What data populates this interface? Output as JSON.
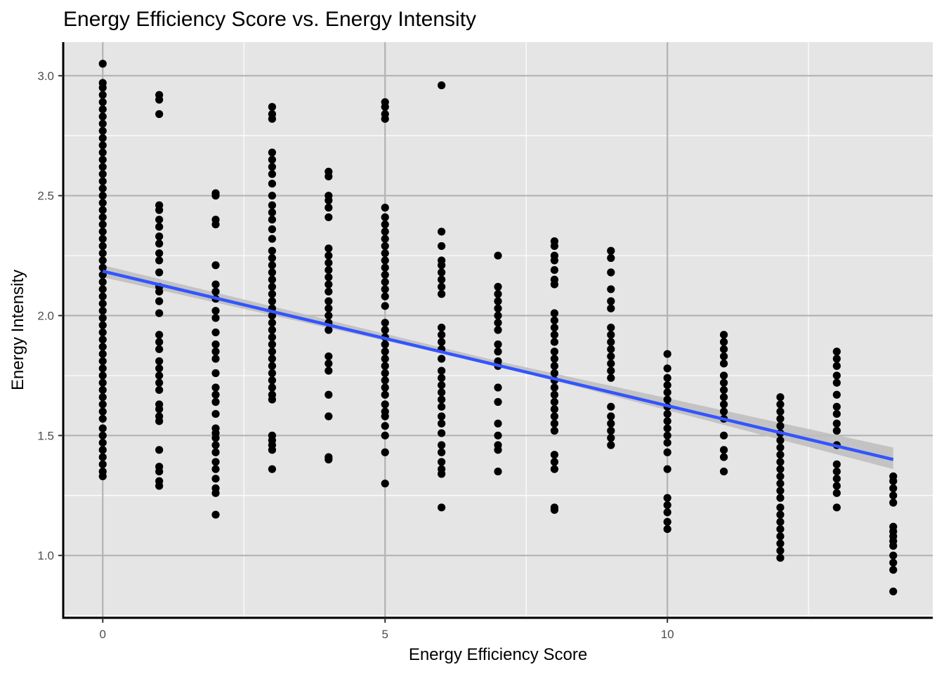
{
  "chart_data": {
    "type": "scatter",
    "title": "Energy Efficiency Score vs. Energy Intensity",
    "xlabel": "Energy Efficiency Score",
    "ylabel": "Energy Intensity",
    "xlim": [
      -0.7,
      14.7
    ],
    "ylim": [
      0.74,
      3.14
    ],
    "x_ticks": [
      0,
      5,
      10
    ],
    "x_tick_labels": [
      "0",
      "5",
      "10"
    ],
    "y_ticks": [
      1.0,
      1.5,
      2.0,
      2.5,
      3.0
    ],
    "y_tick_labels": [
      "1.0",
      "1.5",
      "2.0",
      "2.5",
      "3.0"
    ],
    "grid": true,
    "colors": {
      "panel": "#e5e5e5",
      "grid_major": "#b3b3b3",
      "grid_minor": "#ffffff",
      "points": "#000000",
      "trend": "#3355ff",
      "band": "#bdbdbd"
    },
    "trend_line": {
      "x": [
        0,
        14
      ],
      "y": [
        2.185,
        1.4
      ]
    },
    "confidence_band": {
      "x": [
        0,
        7,
        14
      ],
      "lower": [
        2.16,
        1.79,
        1.36
      ],
      "upper": [
        2.21,
        1.81,
        1.45
      ]
    },
    "points": [
      [
        0,
        3.05
      ],
      [
        0,
        2.97
      ],
      [
        0,
        2.95
      ],
      [
        0,
        2.92
      ],
      [
        0,
        2.89
      ],
      [
        0,
        2.86
      ],
      [
        0,
        2.83
      ],
      [
        0,
        2.8
      ],
      [
        0,
        2.77
      ],
      [
        0,
        2.74
      ],
      [
        0,
        2.71
      ],
      [
        0,
        2.68
      ],
      [
        0,
        2.65
      ],
      [
        0,
        2.62
      ],
      [
        0,
        2.59
      ],
      [
        0,
        2.56
      ],
      [
        0,
        2.53
      ],
      [
        0,
        2.5
      ],
      [
        0,
        2.47
      ],
      [
        0,
        2.44
      ],
      [
        0,
        2.41
      ],
      [
        0,
        2.38
      ],
      [
        0,
        2.35
      ],
      [
        0,
        2.32
      ],
      [
        0,
        2.29
      ],
      [
        0,
        2.26
      ],
      [
        0,
        2.23
      ],
      [
        0,
        2.2
      ],
      [
        0,
        2.17
      ],
      [
        0,
        2.14
      ],
      [
        0,
        2.11
      ],
      [
        0,
        2.08
      ],
      [
        0,
        2.05
      ],
      [
        0,
        2.02
      ],
      [
        0,
        1.99
      ],
      [
        0,
        1.96
      ],
      [
        0,
        1.93
      ],
      [
        0,
        1.9
      ],
      [
        0,
        1.87
      ],
      [
        0,
        1.84
      ],
      [
        0,
        1.81
      ],
      [
        0,
        1.78
      ],
      [
        0,
        1.75
      ],
      [
        0,
        1.72
      ],
      [
        0,
        1.69
      ],
      [
        0,
        1.66
      ],
      [
        0,
        1.63
      ],
      [
        0,
        1.6
      ],
      [
        0,
        1.57
      ],
      [
        0,
        1.53
      ],
      [
        0,
        1.5
      ],
      [
        0,
        1.47
      ],
      [
        0,
        1.44
      ],
      [
        0,
        1.41
      ],
      [
        0,
        1.38
      ],
      [
        0,
        1.35
      ],
      [
        0,
        1.33
      ],
      [
        1,
        2.92
      ],
      [
        1,
        2.9
      ],
      [
        1,
        2.84
      ],
      [
        1,
        2.46
      ],
      [
        1,
        2.44
      ],
      [
        1,
        2.4
      ],
      [
        1,
        2.37
      ],
      [
        1,
        2.33
      ],
      [
        1,
        2.3
      ],
      [
        1,
        2.26
      ],
      [
        1,
        2.23
      ],
      [
        1,
        2.18
      ],
      [
        1,
        2.12
      ],
      [
        1,
        2.1
      ],
      [
        1,
        2.06
      ],
      [
        1,
        2.01
      ],
      [
        1,
        1.92
      ],
      [
        1,
        1.89
      ],
      [
        1,
        1.86
      ],
      [
        1,
        1.81
      ],
      [
        1,
        1.78
      ],
      [
        1,
        1.75
      ],
      [
        1,
        1.72
      ],
      [
        1,
        1.69
      ],
      [
        1,
        1.63
      ],
      [
        1,
        1.61
      ],
      [
        1,
        1.58
      ],
      [
        1,
        1.56
      ],
      [
        1,
        1.44
      ],
      [
        1,
        1.37
      ],
      [
        1,
        1.35
      ],
      [
        1,
        1.31
      ],
      [
        1,
        1.29
      ],
      [
        2,
        2.51
      ],
      [
        2,
        2.5
      ],
      [
        2,
        2.4
      ],
      [
        2,
        2.38
      ],
      [
        2,
        2.21
      ],
      [
        2,
        2.13
      ],
      [
        2,
        2.1
      ],
      [
        2,
        2.07
      ],
      [
        2,
        2.02
      ],
      [
        2,
        1.99
      ],
      [
        2,
        1.93
      ],
      [
        2,
        1.88
      ],
      [
        2,
        1.85
      ],
      [
        2,
        1.82
      ],
      [
        2,
        1.76
      ],
      [
        2,
        1.7
      ],
      [
        2,
        1.67
      ],
      [
        2,
        1.64
      ],
      [
        2,
        1.59
      ],
      [
        2,
        1.53
      ],
      [
        2,
        1.51
      ],
      [
        2,
        1.49
      ],
      [
        2,
        1.46
      ],
      [
        2,
        1.43
      ],
      [
        2,
        1.39
      ],
      [
        2,
        1.36
      ],
      [
        2,
        1.32
      ],
      [
        2,
        1.28
      ],
      [
        2,
        1.26
      ],
      [
        2,
        1.17
      ],
      [
        3,
        2.87
      ],
      [
        3,
        2.84
      ],
      [
        3,
        2.82
      ],
      [
        3,
        2.68
      ],
      [
        3,
        2.65
      ],
      [
        3,
        2.62
      ],
      [
        3,
        2.59
      ],
      [
        3,
        2.55
      ],
      [
        3,
        2.5
      ],
      [
        3,
        2.46
      ],
      [
        3,
        2.43
      ],
      [
        3,
        2.4
      ],
      [
        3,
        2.36
      ],
      [
        3,
        2.32
      ],
      [
        3,
        2.27
      ],
      [
        3,
        2.24
      ],
      [
        3,
        2.21
      ],
      [
        3,
        2.18
      ],
      [
        3,
        2.15
      ],
      [
        3,
        2.12
      ],
      [
        3,
        2.09
      ],
      [
        3,
        2.06
      ],
      [
        3,
        2.03
      ],
      [
        3,
        2.0
      ],
      [
        3,
        1.97
      ],
      [
        3,
        1.94
      ],
      [
        3,
        1.91
      ],
      [
        3,
        1.88
      ],
      [
        3,
        1.85
      ],
      [
        3,
        1.82
      ],
      [
        3,
        1.79
      ],
      [
        3,
        1.76
      ],
      [
        3,
        1.73
      ],
      [
        3,
        1.7
      ],
      [
        3,
        1.67
      ],
      [
        3,
        1.65
      ],
      [
        3,
        1.5
      ],
      [
        3,
        1.48
      ],
      [
        3,
        1.46
      ],
      [
        3,
        1.44
      ],
      [
        3,
        1.36
      ],
      [
        4,
        2.6
      ],
      [
        4,
        2.58
      ],
      [
        4,
        2.5
      ],
      [
        4,
        2.48
      ],
      [
        4,
        2.45
      ],
      [
        4,
        2.41
      ],
      [
        4,
        2.28
      ],
      [
        4,
        2.25
      ],
      [
        4,
        2.22
      ],
      [
        4,
        2.19
      ],
      [
        4,
        2.16
      ],
      [
        4,
        2.13
      ],
      [
        4,
        2.1
      ],
      [
        4,
        2.06
      ],
      [
        4,
        2.03
      ],
      [
        4,
        2.0
      ],
      [
        4,
        1.97
      ],
      [
        4,
        1.94
      ],
      [
        4,
        1.83
      ],
      [
        4,
        1.8
      ],
      [
        4,
        1.77
      ],
      [
        4,
        1.67
      ],
      [
        4,
        1.58
      ],
      [
        4,
        1.41
      ],
      [
        4,
        1.4
      ],
      [
        5,
        2.89
      ],
      [
        5,
        2.87
      ],
      [
        5,
        2.84
      ],
      [
        5,
        2.82
      ],
      [
        5,
        2.45
      ],
      [
        5,
        2.41
      ],
      [
        5,
        2.38
      ],
      [
        5,
        2.35
      ],
      [
        5,
        2.32
      ],
      [
        5,
        2.29
      ],
      [
        5,
        2.26
      ],
      [
        5,
        2.23
      ],
      [
        5,
        2.2
      ],
      [
        5,
        2.17
      ],
      [
        5,
        2.14
      ],
      [
        5,
        2.11
      ],
      [
        5,
        2.08
      ],
      [
        5,
        2.04
      ],
      [
        5,
        1.97
      ],
      [
        5,
        1.94
      ],
      [
        5,
        1.91
      ],
      [
        5,
        1.88
      ],
      [
        5,
        1.85
      ],
      [
        5,
        1.82
      ],
      [
        5,
        1.79
      ],
      [
        5,
        1.76
      ],
      [
        5,
        1.73
      ],
      [
        5,
        1.7
      ],
      [
        5,
        1.67
      ],
      [
        5,
        1.63
      ],
      [
        5,
        1.6
      ],
      [
        5,
        1.58
      ],
      [
        5,
        1.54
      ],
      [
        5,
        1.5
      ],
      [
        5,
        1.43
      ],
      [
        5,
        1.3
      ],
      [
        6,
        2.96
      ],
      [
        6,
        2.35
      ],
      [
        6,
        2.29
      ],
      [
        6,
        2.23
      ],
      [
        6,
        2.21
      ],
      [
        6,
        2.18
      ],
      [
        6,
        2.15
      ],
      [
        6,
        2.12
      ],
      [
        6,
        2.09
      ],
      [
        6,
        1.95
      ],
      [
        6,
        1.92
      ],
      [
        6,
        1.89
      ],
      [
        6,
        1.86
      ],
      [
        6,
        1.82
      ],
      [
        6,
        1.77
      ],
      [
        6,
        1.74
      ],
      [
        6,
        1.71
      ],
      [
        6,
        1.68
      ],
      [
        6,
        1.65
      ],
      [
        6,
        1.62
      ],
      [
        6,
        1.58
      ],
      [
        6,
        1.55
      ],
      [
        6,
        1.51
      ],
      [
        6,
        1.46
      ],
      [
        6,
        1.43
      ],
      [
        6,
        1.39
      ],
      [
        6,
        1.36
      ],
      [
        6,
        1.34
      ],
      [
        6,
        1.2
      ],
      [
        7,
        2.25
      ],
      [
        7,
        2.12
      ],
      [
        7,
        2.09
      ],
      [
        7,
        2.06
      ],
      [
        7,
        2.03
      ],
      [
        7,
        2.0
      ],
      [
        7,
        1.97
      ],
      [
        7,
        1.94
      ],
      [
        7,
        1.88
      ],
      [
        7,
        1.85
      ],
      [
        7,
        1.81
      ],
      [
        7,
        1.79
      ],
      [
        7,
        1.7
      ],
      [
        7,
        1.64
      ],
      [
        7,
        1.55
      ],
      [
        7,
        1.5
      ],
      [
        7,
        1.46
      ],
      [
        7,
        1.44
      ],
      [
        7,
        1.35
      ],
      [
        8,
        2.31
      ],
      [
        8,
        2.29
      ],
      [
        8,
        2.25
      ],
      [
        8,
        2.23
      ],
      [
        8,
        2.19
      ],
      [
        8,
        2.15
      ],
      [
        8,
        2.13
      ],
      [
        8,
        2.01
      ],
      [
        8,
        1.98
      ],
      [
        8,
        1.95
      ],
      [
        8,
        1.92
      ],
      [
        8,
        1.89
      ],
      [
        8,
        1.85
      ],
      [
        8,
        1.82
      ],
      [
        8,
        1.79
      ],
      [
        8,
        1.76
      ],
      [
        8,
        1.73
      ],
      [
        8,
        1.7
      ],
      [
        8,
        1.67
      ],
      [
        8,
        1.64
      ],
      [
        8,
        1.61
      ],
      [
        8,
        1.58
      ],
      [
        8,
        1.55
      ],
      [
        8,
        1.52
      ],
      [
        8,
        1.42
      ],
      [
        8,
        1.39
      ],
      [
        8,
        1.36
      ],
      [
        8,
        1.2
      ],
      [
        8,
        1.19
      ],
      [
        9,
        2.27
      ],
      [
        9,
        2.24
      ],
      [
        9,
        2.18
      ],
      [
        9,
        2.11
      ],
      [
        9,
        2.06
      ],
      [
        9,
        2.03
      ],
      [
        9,
        1.95
      ],
      [
        9,
        1.92
      ],
      [
        9,
        1.89
      ],
      [
        9,
        1.86
      ],
      [
        9,
        1.83
      ],
      [
        9,
        1.8
      ],
      [
        9,
        1.77
      ],
      [
        9,
        1.74
      ],
      [
        9,
        1.62
      ],
      [
        9,
        1.58
      ],
      [
        9,
        1.55
      ],
      [
        9,
        1.52
      ],
      [
        9,
        1.49
      ],
      [
        9,
        1.46
      ],
      [
        10,
        1.84
      ],
      [
        10,
        1.78
      ],
      [
        10,
        1.74
      ],
      [
        10,
        1.71
      ],
      [
        10,
        1.68
      ],
      [
        10,
        1.65
      ],
      [
        10,
        1.62
      ],
      [
        10,
        1.59
      ],
      [
        10,
        1.56
      ],
      [
        10,
        1.53
      ],
      [
        10,
        1.5
      ],
      [
        10,
        1.47
      ],
      [
        10,
        1.43
      ],
      [
        10,
        1.36
      ],
      [
        10,
        1.24
      ],
      [
        10,
        1.21
      ],
      [
        10,
        1.18
      ],
      [
        10,
        1.14
      ],
      [
        10,
        1.11
      ],
      [
        11,
        1.92
      ],
      [
        11,
        1.89
      ],
      [
        11,
        1.86
      ],
      [
        11,
        1.83
      ],
      [
        11,
        1.8
      ],
      [
        11,
        1.75
      ],
      [
        11,
        1.72
      ],
      [
        11,
        1.69
      ],
      [
        11,
        1.66
      ],
      [
        11,
        1.63
      ],
      [
        11,
        1.6
      ],
      [
        11,
        1.57
      ],
      [
        11,
        1.5
      ],
      [
        11,
        1.44
      ],
      [
        11,
        1.41
      ],
      [
        11,
        1.35
      ],
      [
        12,
        1.66
      ],
      [
        12,
        1.63
      ],
      [
        12,
        1.6
      ],
      [
        12,
        1.57
      ],
      [
        12,
        1.54
      ],
      [
        12,
        1.51
      ],
      [
        12,
        1.48
      ],
      [
        12,
        1.45
      ],
      [
        12,
        1.42
      ],
      [
        12,
        1.39
      ],
      [
        12,
        1.36
      ],
      [
        12,
        1.33
      ],
      [
        12,
        1.3
      ],
      [
        12,
        1.27
      ],
      [
        12,
        1.24
      ],
      [
        12,
        1.2
      ],
      [
        12,
        1.17
      ],
      [
        12,
        1.14
      ],
      [
        12,
        1.11
      ],
      [
        12,
        1.08
      ],
      [
        12,
        1.05
      ],
      [
        12,
        1.02
      ],
      [
        12,
        0.99
      ],
      [
        13,
        1.85
      ],
      [
        13,
        1.82
      ],
      [
        13,
        1.79
      ],
      [
        13,
        1.75
      ],
      [
        13,
        1.72
      ],
      [
        13,
        1.67
      ],
      [
        13,
        1.62
      ],
      [
        13,
        1.59
      ],
      [
        13,
        1.55
      ],
      [
        13,
        1.52
      ],
      [
        13,
        1.46
      ],
      [
        13,
        1.38
      ],
      [
        13,
        1.35
      ],
      [
        13,
        1.32
      ],
      [
        13,
        1.29
      ],
      [
        13,
        1.26
      ],
      [
        13,
        1.2
      ],
      [
        14,
        1.33
      ],
      [
        14,
        1.31
      ],
      [
        14,
        1.28
      ],
      [
        14,
        1.25
      ],
      [
        14,
        1.22
      ],
      [
        14,
        1.12
      ],
      [
        14,
        1.1
      ],
      [
        14,
        1.08
      ],
      [
        14,
        1.06
      ],
      [
        14,
        1.04
      ],
      [
        14,
        1.0
      ],
      [
        14,
        0.97
      ],
      [
        14,
        0.94
      ],
      [
        14,
        0.85
      ]
    ]
  }
}
